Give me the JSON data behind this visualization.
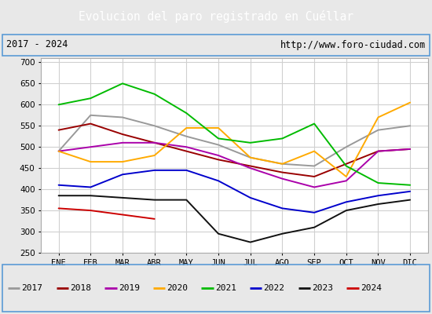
{
  "title": "Evolucion del paro registrado en Cuéllar",
  "subtitle_left": "2017 - 2024",
  "subtitle_right": "http://www.foro-ciudad.com",
  "months": [
    "ENE",
    "FEB",
    "MAR",
    "ABR",
    "MAY",
    "JUN",
    "JUL",
    "AGO",
    "SEP",
    "OCT",
    "NOV",
    "DIC"
  ],
  "ylim": [
    250,
    710
  ],
  "yticks": [
    250,
    300,
    350,
    400,
    450,
    500,
    550,
    600,
    650,
    700
  ],
  "series": {
    "2017": {
      "color": "#999999",
      "data": [
        490,
        575,
        570,
        550,
        525,
        505,
        475,
        460,
        455,
        500,
        540,
        550
      ]
    },
    "2018": {
      "color": "#990000",
      "data": [
        540,
        555,
        530,
        510,
        490,
        470,
        455,
        440,
        430,
        460,
        490,
        495
      ]
    },
    "2019": {
      "color": "#aa00aa",
      "data": [
        490,
        500,
        510,
        510,
        500,
        480,
        450,
        425,
        405,
        420,
        490,
        495
      ]
    },
    "2020": {
      "color": "#ffaa00",
      "data": [
        490,
        465,
        465,
        480,
        545,
        545,
        475,
        460,
        490,
        430,
        570,
        605
      ]
    },
    "2021": {
      "color": "#00bb00",
      "data": [
        600,
        615,
        650,
        625,
        580,
        520,
        510,
        520,
        555,
        455,
        415,
        410
      ]
    },
    "2022": {
      "color": "#0000cc",
      "data": [
        410,
        405,
        435,
        445,
        445,
        420,
        380,
        355,
        345,
        370,
        385,
        395
      ]
    },
    "2023": {
      "color": "#111111",
      "data": [
        385,
        385,
        380,
        375,
        375,
        295,
        275,
        295,
        310,
        350,
        365,
        375
      ]
    },
    "2024": {
      "color": "#cc0000",
      "data": [
        355,
        350,
        340,
        330,
        null,
        null,
        null,
        null,
        null,
        null,
        null,
        null
      ]
    }
  },
  "title_bg_color": "#5b9bd5",
  "title_text_color": "#ffffff",
  "border_color": "#5b9bd5",
  "grid_color": "#d0d0d0",
  "fig_bg_color": "#e8e8e8",
  "plot_bg_color": "#ffffff"
}
